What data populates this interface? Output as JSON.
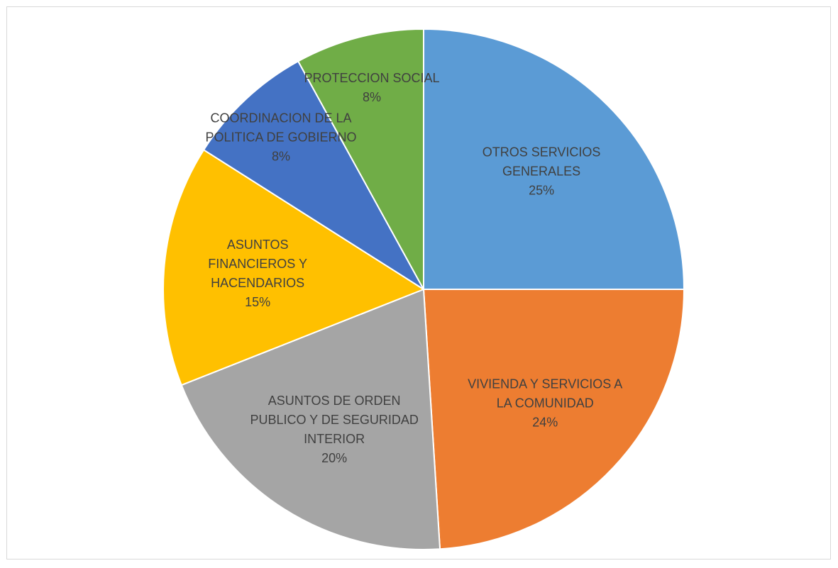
{
  "chart_data": {
    "type": "pie",
    "categories": [
      "OTROS SERVICIOS GENERALES",
      "VIVIENDA Y SERVICIOS A LA COMUNIDAD",
      "ASUNTOS DE ORDEN PUBLICO Y DE SEGURIDAD INTERIOR",
      "ASUNTOS FINANCIEROS Y HACENDARIOS",
      "COORDINACION DE LA POLITICA DE GOBIERNO",
      "PROTECCION SOCIAL"
    ],
    "values": [
      25,
      24,
      20,
      15,
      8,
      8
    ],
    "value_labels": [
      "25%",
      "24%",
      "20%",
      "15%",
      "8%",
      "8%"
    ],
    "colors": [
      "#5b9bd5",
      "#ed7d31",
      "#a5a5a5",
      "#ffc000",
      "#4472c4",
      "#70ad47"
    ]
  }
}
